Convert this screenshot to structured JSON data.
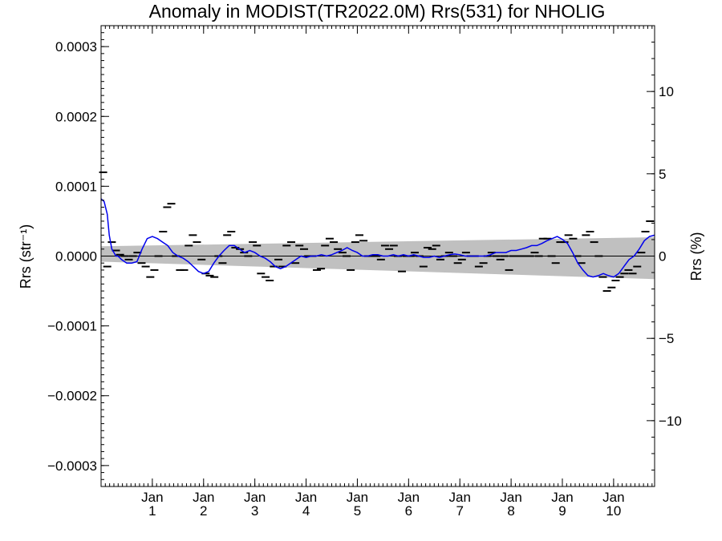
{
  "chart_data": {
    "type": "line",
    "title": "Anomaly in MODIST(TR2022.0M) Rrs(531) for NHOLIG",
    "ylabel_left": "Rrs (str⁻¹)",
    "ylabel_right": "Rrs (%)",
    "ylim_left": [
      -0.00033,
      0.00033
    ],
    "ylim_right": [
      -14,
      14
    ],
    "xlim": [
      2000.0,
      2010.8
    ],
    "grid": false,
    "left_ticks": [
      {
        "value": 0.0003,
        "label": "0.0003"
      },
      {
        "value": 0.0002,
        "label": "0.0002"
      },
      {
        "value": 0.0001,
        "label": "0.0001"
      },
      {
        "value": 0.0,
        "label": "0.0000"
      },
      {
        "value": -0.0001,
        "label": "−0.0001"
      },
      {
        "value": -0.0002,
        "label": "−0.0002"
      },
      {
        "value": -0.0003,
        "label": "−0.0003"
      }
    ],
    "right_ticks": [
      {
        "value": 10,
        "label": "10"
      },
      {
        "value": 5,
        "label": "5"
      },
      {
        "value": 0,
        "label": "0"
      },
      {
        "value": -5,
        "label": "−5"
      },
      {
        "value": -10,
        "label": "−10"
      }
    ],
    "x_ticks": [
      {
        "value": 2001,
        "month": "Jan",
        "year": "1"
      },
      {
        "value": 2002,
        "month": "Jan",
        "year": "2"
      },
      {
        "value": 2003,
        "month": "Jan",
        "year": "3"
      },
      {
        "value": 2004,
        "month": "Jan",
        "year": "4"
      },
      {
        "value": 2005,
        "month": "Jan",
        "year": "5"
      },
      {
        "value": 2006,
        "month": "Jan",
        "year": "6"
      },
      {
        "value": 2007,
        "month": "Jan",
        "year": "7"
      },
      {
        "value": 2008,
        "month": "Jan",
        "year": "8"
      },
      {
        "value": 2009,
        "month": "Jan",
        "year": "9"
      },
      {
        "value": 2010,
        "month": "Jan",
        "year": "10"
      }
    ],
    "uncertainty_band": {
      "x": [
        2000.0,
        2010.8
      ],
      "upper": [
        1.4e-05,
        2.7e-05
      ],
      "lower": [
        -8e-06,
        -3.3e-05
      ],
      "color": "#c0c0c0"
    },
    "zero_line": {
      "y": 0.0,
      "color": "#000000"
    },
    "series": [
      {
        "kind": "dash_markers",
        "color": "#000000",
        "x": [
          2000.04,
          2000.12,
          2000.21,
          2000.29,
          2000.37,
          2000.46,
          2000.54,
          2000.62,
          2000.71,
          2000.79,
          2000.87,
          2000.96,
          2001.04,
          2001.12,
          2001.21,
          2001.29,
          2001.37,
          2001.46,
          2001.54,
          2001.62,
          2001.71,
          2001.79,
          2001.87,
          2001.96,
          2002.04,
          2002.12,
          2002.21,
          2002.29,
          2002.37,
          2002.46,
          2002.54,
          2002.62,
          2002.71,
          2002.79,
          2002.87,
          2002.96,
          2003.04,
          2003.12,
          2003.21,
          2003.29,
          2003.37,
          2003.46,
          2003.54,
          2003.62,
          2003.71,
          2003.79,
          2003.87,
          2003.96,
          2004.04,
          2004.12,
          2004.21,
          2004.29,
          2004.37,
          2004.46,
          2004.54,
          2004.62,
          2004.71,
          2004.79,
          2004.87,
          2004.96,
          2005.04,
          2005.12,
          2005.21,
          2005.29,
          2005.37,
          2005.46,
          2005.54,
          2005.62,
          2005.71,
          2005.79,
          2005.87,
          2005.96,
          2006.04,
          2006.12,
          2006.21,
          2006.29,
          2006.37,
          2006.46,
          2006.54,
          2006.62,
          2006.71,
          2006.79,
          2006.87,
          2006.96,
          2007.04,
          2007.12,
          2007.21,
          2007.29,
          2007.37,
          2007.46,
          2007.54,
          2007.62,
          2007.71,
          2007.79,
          2007.87,
          2007.96,
          2008.04,
          2008.12,
          2008.21,
          2008.29,
          2008.37,
          2008.46,
          2008.54,
          2008.62,
          2008.71,
          2008.79,
          2008.87,
          2008.96,
          2009.04,
          2009.12,
          2009.21,
          2009.29,
          2009.37,
          2009.46,
          2009.54,
          2009.62,
          2009.71,
          2009.79,
          2009.87,
          2009.96,
          2010.04,
          2010.12,
          2010.21,
          2010.29,
          2010.37,
          2010.46,
          2010.54,
          2010.62,
          2010.71
        ],
        "values": [
          0.00012,
          -1.5e-05,
          2e-05,
          8e-06,
          2e-06,
          0.0,
          -5e-06,
          0.0,
          5e-06,
          -1e-05,
          -1.5e-05,
          -3e-05,
          -2e-05,
          0.0,
          3.5e-05,
          7e-05,
          7.5e-05,
          0.0,
          -2e-05,
          -2e-05,
          1.5e-05,
          3e-05,
          2e-05,
          -5e-06,
          -2.5e-05,
          -2.8e-05,
          -3e-05,
          0.0,
          -1e-05,
          3e-05,
          3.5e-05,
          1.2e-05,
          1e-05,
          5e-06,
          0.0,
          2e-05,
          1.5e-05,
          -2.5e-05,
          -3e-05,
          -3.5e-05,
          -1.5e-05,
          -5e-06,
          -1.5e-05,
          1.5e-05,
          2e-05,
          -1e-05,
          1.5e-05,
          1e-05,
          0.0,
          0.0,
          -2e-05,
          -1.8e-05,
          1.5e-05,
          2.5e-05,
          2e-05,
          1e-05,
          5e-06,
          0.0,
          -2e-05,
          2e-05,
          3e-05,
          2.2e-05,
          0.0,
          0.0,
          0.0,
          -5e-06,
          1.5e-05,
          1e-05,
          1.5e-05,
          0.0,
          -2.2e-05,
          0.0,
          0.0,
          5e-06,
          0.0,
          -1.5e-05,
          1.2e-05,
          1e-05,
          1.5e-05,
          -5e-06,
          0.0,
          5e-06,
          0.0,
          -1e-05,
          -5e-06,
          5e-06,
          0.0,
          0.0,
          -1.5e-05,
          -1e-05,
          0.0,
          5e-06,
          0.0,
          -5e-06,
          0.0,
          -2e-05,
          0.0,
          0.0,
          0.0,
          0.0,
          0.0,
          5e-06,
          0.0,
          2.5e-05,
          2.5e-05,
          0.0,
          -1e-05,
          2e-05,
          2e-05,
          3e-05,
          2.5e-05,
          0.0,
          -1e-05,
          3e-05,
          3.5e-05,
          2e-05,
          0.0,
          -3e-05,
          -5e-05,
          -4.5e-05,
          -3.5e-05,
          -3e-05,
          -2.5e-05,
          -2e-05,
          -2.5e-05,
          -1.5e-05,
          5e-06,
          3.5e-05,
          5e-05
        ]
      },
      {
        "kind": "line",
        "color": "#0000ee",
        "x": [
          2000.0,
          2000.06,
          2000.12,
          2000.16,
          2000.21,
          2000.25,
          2000.29,
          2000.33,
          2000.4,
          2000.5,
          2000.6,
          2000.7,
          2000.8,
          2000.9,
          2001.0,
          2001.1,
          2001.2,
          2001.3,
          2001.4,
          2001.5,
          2001.6,
          2001.7,
          2001.8,
          2001.9,
          2002.0,
          2002.1,
          2002.2,
          2002.3,
          2002.4,
          2002.5,
          2002.6,
          2002.7,
          2002.8,
          2002.9,
          2003.0,
          2003.1,
          2003.2,
          2003.3,
          2003.4,
          2003.5,
          2003.6,
          2003.7,
          2003.8,
          2003.9,
          2004.0,
          2004.1,
          2004.2,
          2004.3,
          2004.4,
          2004.5,
          2004.6,
          2004.7,
          2004.8,
          2004.9,
          2005.0,
          2005.1,
          2005.2,
          2005.3,
          2005.4,
          2005.5,
          2005.6,
          2005.7,
          2005.8,
          2005.9,
          2006.0,
          2006.1,
          2006.2,
          2006.3,
          2006.4,
          2006.5,
          2006.6,
          2006.7,
          2006.8,
          2006.9,
          2007.0,
          2007.1,
          2007.2,
          2007.3,
          2007.4,
          2007.5,
          2007.6,
          2007.7,
          2007.8,
          2007.9,
          2008.0,
          2008.1,
          2008.2,
          2008.3,
          2008.4,
          2008.5,
          2008.6,
          2008.7,
          2008.8,
          2008.9,
          2009.0,
          2009.1,
          2009.2,
          2009.3,
          2009.4,
          2009.5,
          2009.6,
          2009.7,
          2009.8,
          2009.9,
          2010.0,
          2010.1,
          2010.2,
          2010.3,
          2010.4,
          2010.5,
          2010.6,
          2010.7,
          2010.8
        ],
        "values": [
          8.2e-05,
          7.8e-05,
          6e-05,
          3e-05,
          1e-05,
          5e-06,
          0.0,
          0.0,
          -5e-06,
          -1e-05,
          -1e-05,
          -8e-06,
          1e-05,
          2.5e-05,
          2.8e-05,
          2.5e-05,
          2e-05,
          1.5e-05,
          5e-06,
          0.0,
          -3e-06,
          -8e-06,
          -1.5e-05,
          -2.2e-05,
          -2.5e-05,
          -2.2e-05,
          -1e-05,
          0.0,
          8e-06,
          1.5e-05,
          1.5e-05,
          1e-05,
          5e-06,
          8e-06,
          5e-06,
          0.0,
          -3e-06,
          -8e-06,
          -1.5e-05,
          -1.8e-05,
          -1.5e-05,
          -1e-05,
          -5e-06,
          0.0,
          -2e-06,
          0.0,
          0.0,
          2e-06,
          0.0,
          2e-06,
          5e-06,
          8e-06,
          1.2e-05,
          8e-06,
          5e-06,
          0.0,
          0.0,
          2e-06,
          2e-06,
          0.0,
          0.0,
          2e-06,
          0.0,
          2e-06,
          0.0,
          2e-06,
          0.0,
          -2e-06,
          -2e-06,
          0.0,
          -2e-06,
          0.0,
          2e-06,
          3e-06,
          2e-06,
          0.0,
          0.0,
          0.0,
          0.0,
          0.0,
          2e-06,
          5e-06,
          5e-06,
          5e-06,
          8e-06,
          8e-06,
          1e-05,
          1.2e-05,
          1.5e-05,
          1.5e-05,
          1.8e-05,
          2.2e-05,
          2.5e-05,
          2.8e-05,
          2.4e-05,
          1.8e-05,
          5e-06,
          -1e-05,
          -2e-05,
          -2.8e-05,
          -3e-05,
          -2.8e-05,
          -2.5e-05,
          -2.8e-05,
          -3e-05,
          -2.5e-05,
          -1.5e-05,
          -5e-06,
          0.0,
          1e-05,
          2.2e-05,
          2.8e-05,
          3e-05
        ]
      }
    ]
  }
}
